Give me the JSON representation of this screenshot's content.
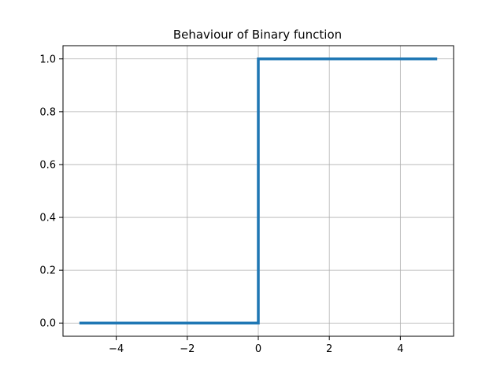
{
  "chart_data": {
    "type": "line",
    "title": "Behaviour of Binary function",
    "xlabel": "",
    "ylabel": "",
    "xlim": [
      -5.5,
      5.5
    ],
    "ylim": [
      -0.05,
      1.05
    ],
    "grid": true,
    "x_ticks": [
      -4,
      -2,
      0,
      2,
      4
    ],
    "x_tick_labels": [
      "−4",
      "−2",
      "0",
      "2",
      "4"
    ],
    "y_ticks": [
      0.0,
      0.2,
      0.4,
      0.6,
      0.8,
      1.0
    ],
    "y_tick_labels": [
      "0.0",
      "0.2",
      "0.4",
      "0.6",
      "0.8",
      "1.0"
    ],
    "series": [
      {
        "color": "#1f77b4",
        "x": [
          -5,
          0,
          0,
          5
        ],
        "y": [
          0,
          0,
          1,
          1
        ]
      }
    ]
  }
}
